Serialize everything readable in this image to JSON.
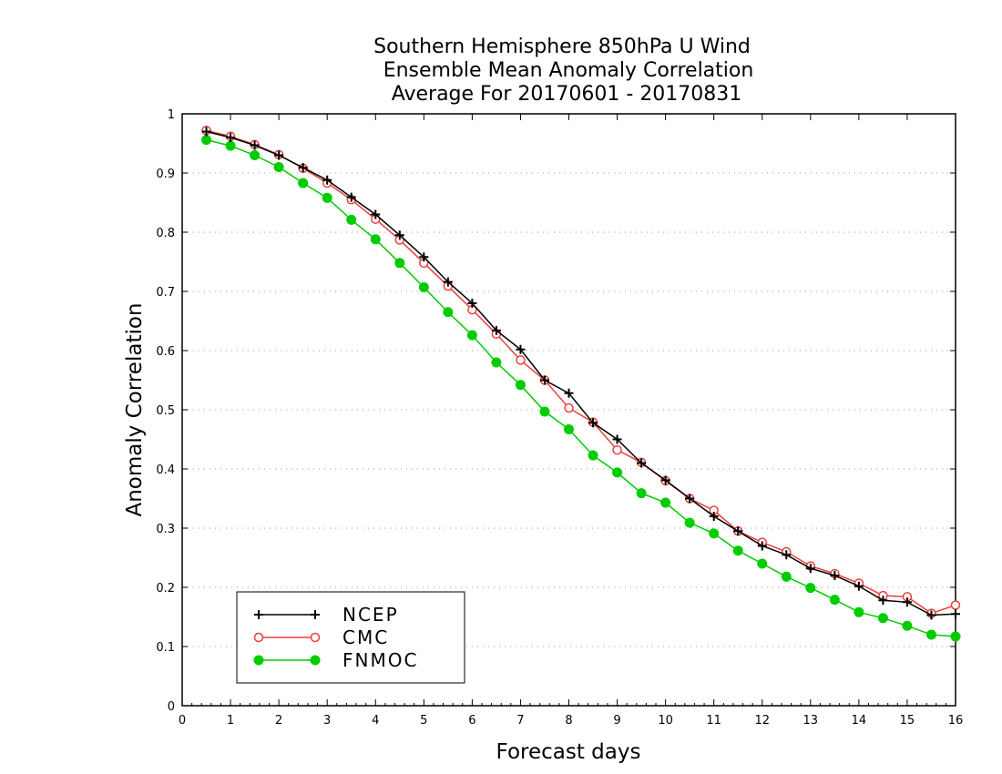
{
  "chart_data": {
    "type": "line",
    "title": [
      "Southern Hemisphere 850hPa U Wind",
      "Ensemble Mean Anomaly Correlation",
      "Average For 20170601 - 20170831"
    ],
    "xlabel": "Forecast days",
    "ylabel": "Anomaly Correlation",
    "xlim": [
      0,
      16
    ],
    "ylim": [
      0,
      1
    ],
    "xticks": [
      "0",
      "1",
      "2",
      "3",
      "4",
      "5",
      "6",
      "7",
      "8",
      "9",
      "10",
      "11",
      "12",
      "13",
      "14",
      "15",
      "16"
    ],
    "yticks": [
      "0",
      "0.1",
      "0.2",
      "0.3",
      "0.4",
      "0.5",
      "0.6",
      "0.7",
      "0.8",
      "0.9",
      "1"
    ],
    "grid": "horizontal-dotted",
    "legend_position": "bottom-left",
    "x": [
      0.5,
      1,
      1.5,
      2,
      2.5,
      3,
      3.5,
      4,
      4.5,
      5,
      5.5,
      6,
      6.5,
      7,
      7.5,
      8,
      8.5,
      9,
      9.5,
      10,
      10.5,
      11,
      11.5,
      12,
      12.5,
      13,
      13.5,
      14,
      14.5,
      15,
      15.5,
      16
    ],
    "series": [
      {
        "name": "NCEP",
        "color": "#000000",
        "marker": "plus",
        "values": [
          0.97,
          0.96,
          0.947,
          0.93,
          0.909,
          0.888,
          0.859,
          0.83,
          0.795,
          0.758,
          0.716,
          0.68,
          0.634,
          0.602,
          0.55,
          0.528,
          0.478,
          0.45,
          0.41,
          0.381,
          0.35,
          0.32,
          0.295,
          0.27,
          0.255,
          0.232,
          0.22,
          0.202,
          0.178,
          0.175,
          0.153,
          0.155
        ]
      },
      {
        "name": "CMC",
        "color": "#e8413c",
        "marker": "open-circle",
        "values": [
          0.972,
          0.962,
          0.948,
          0.931,
          0.908,
          0.883,
          0.855,
          0.822,
          0.787,
          0.748,
          0.709,
          0.669,
          0.628,
          0.584,
          0.55,
          0.503,
          0.479,
          0.432,
          0.411,
          0.38,
          0.35,
          0.33,
          0.295,
          0.276,
          0.26,
          0.236,
          0.223,
          0.207,
          0.186,
          0.184,
          0.156,
          0.17
        ]
      },
      {
        "name": "FNMOC",
        "color": "#00cc00",
        "marker": "filled-circle",
        "values": [
          0.956,
          0.946,
          0.93,
          0.91,
          0.883,
          0.858,
          0.821,
          0.788,
          0.748,
          0.707,
          0.665,
          0.626,
          0.58,
          0.542,
          0.497,
          0.467,
          0.423,
          0.394,
          0.359,
          0.343,
          0.309,
          0.291,
          0.262,
          0.24,
          0.218,
          0.199,
          0.179,
          0.158,
          0.148,
          0.135,
          0.12,
          0.117
        ]
      }
    ]
  }
}
